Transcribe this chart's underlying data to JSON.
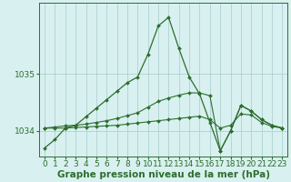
{
  "xlabel": "Graphe pression niveau de la mer (hPa)",
  "hours": [
    0,
    1,
    2,
    3,
    4,
    5,
    6,
    7,
    8,
    9,
    10,
    11,
    12,
    13,
    14,
    15,
    16,
    17,
    18,
    19,
    20,
    21,
    22,
    23
  ],
  "series1": [
    1033.7,
    1033.85,
    1034.05,
    1034.1,
    1034.25,
    1034.4,
    1034.55,
    1034.7,
    1034.85,
    1034.95,
    1035.35,
    1035.85,
    1036.0,
    1035.45,
    1034.95,
    1034.65,
    1034.15,
    1033.65,
    1034.0,
    1034.45,
    1034.35,
    1034.2,
    1034.1,
    1034.05
  ],
  "series2": [
    1034.05,
    1034.07,
    1034.09,
    1034.1,
    1034.12,
    1034.15,
    1034.18,
    1034.22,
    1034.27,
    1034.32,
    1034.42,
    1034.52,
    1034.58,
    1034.63,
    1034.67,
    1034.67,
    1034.62,
    1033.65,
    1034.0,
    1034.45,
    1034.35,
    1034.2,
    1034.1,
    1034.05
  ],
  "series3": [
    1034.05,
    1034.05,
    1034.05,
    1034.06,
    1034.07,
    1034.08,
    1034.09,
    1034.1,
    1034.12,
    1034.14,
    1034.16,
    1034.18,
    1034.2,
    1034.22,
    1034.24,
    1034.26,
    1034.2,
    1034.05,
    1034.1,
    1034.3,
    1034.28,
    1034.15,
    1034.08,
    1034.05
  ],
  "line_color": "#2d6e2d",
  "bg_color": "#d8f0f0",
  "grid_color": "#a8cccc",
  "ylim": [
    1033.55,
    1036.25
  ],
  "yticks": [
    1034,
    1035
  ],
  "xlabel_fontsize": 7.5,
  "tick_fontsize": 6.5
}
